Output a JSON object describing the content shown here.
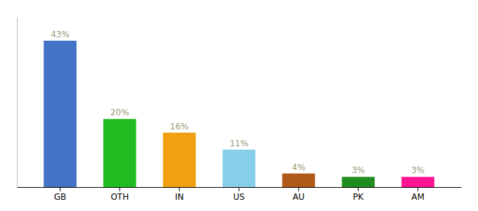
{
  "chart_data": {
    "type": "bar",
    "categories": [
      "GB",
      "OTH",
      "IN",
      "US",
      "AU",
      "PK",
      "AM"
    ],
    "values": [
      43,
      20,
      16,
      11,
      4,
      3,
      3
    ],
    "value_labels": [
      "43%",
      "20%",
      "16%",
      "11%",
      "4%",
      "3%",
      "3%"
    ],
    "colors": [
      "#4472c4",
      "#22bb22",
      "#f0a010",
      "#87ceeb",
      "#b05a1a",
      "#1e8c1e",
      "#ff1493"
    ],
    "data_labels": true,
    "ylim": [
      0,
      50
    ],
    "tick_labels": "x",
    "grid": false
  }
}
